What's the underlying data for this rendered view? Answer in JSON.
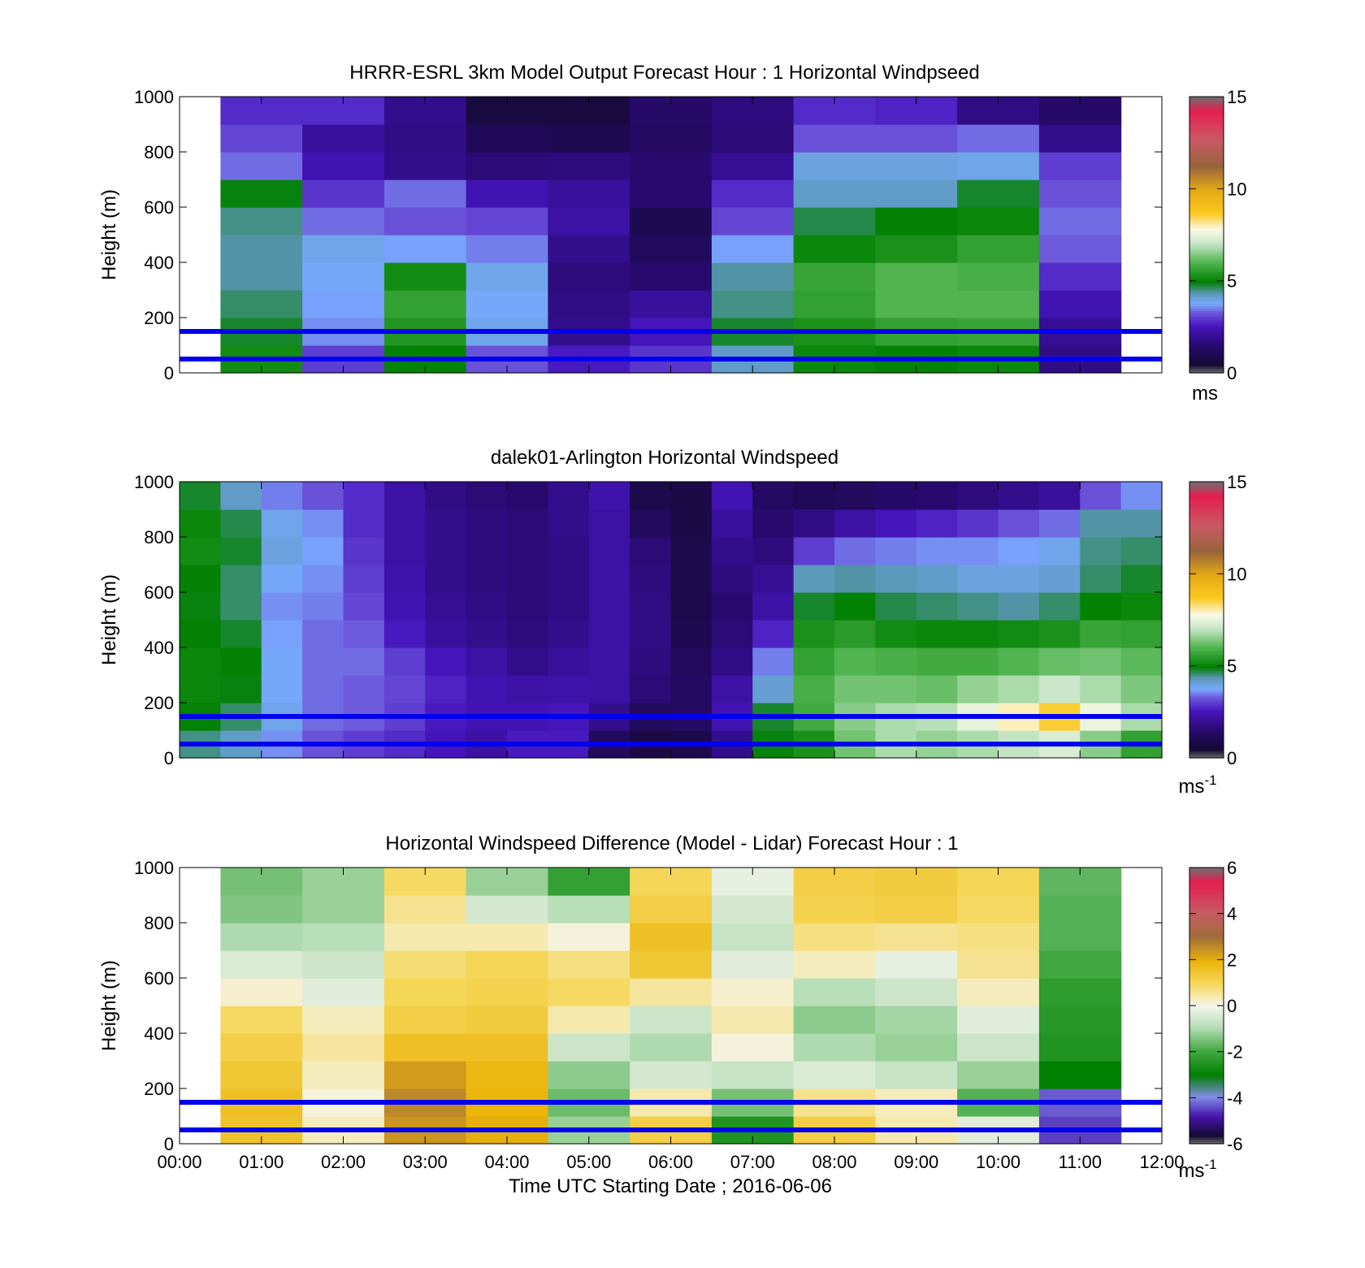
{
  "figure": {
    "xlabel": "Time UTC  Starting Date ; 2016-06-06",
    "x_ticks": [
      "00:00",
      "01:00",
      "02:00",
      "03:00",
      "04:00",
      "05:00",
      "06:00",
      "07:00",
      "08:00",
      "09:00",
      "10:00",
      "11:00",
      "12:00"
    ],
    "y_ticks": [
      "0",
      "200",
      "400",
      "600",
      "800",
      "1000"
    ],
    "ylabel": "Height (m)"
  },
  "chart_data": [
    {
      "type": "heatmap",
      "title": "HRRR-ESRL 3km Model Output   Forecast Hour : 1 Horizontal Windpseed",
      "xlabel": "",
      "ylabel": "Height (m)",
      "xlim": [
        0,
        12
      ],
      "ylim": [
        0,
        1000
      ],
      "grid": false,
      "colorbar": {
        "min": 0,
        "max": 15,
        "ticks": [
          "0",
          "5",
          "10",
          "15"
        ],
        "unit": "ms"
      },
      "x_hours": [
        1,
        2,
        3,
        4,
        5,
        6,
        7,
        8,
        9,
        10,
        11
      ],
      "y_levels_m": [
        50,
        150,
        250,
        350,
        450,
        550,
        650,
        750,
        850,
        950
      ],
      "values": [
        [
          5.2,
          4.8,
          4.6,
          4.4,
          4.4,
          4.5,
          4.9,
          3.4,
          3.1,
          2.8
        ],
        [
          3.0,
          3.6,
          3.7,
          3.8,
          3.9,
          3.4,
          2.9,
          2.4,
          2.1,
          2.8
        ],
        [
          5.0,
          5.4,
          5.6,
          5.2,
          3.7,
          3.2,
          3.4,
          1.9,
          1.8,
          1.9
        ],
        [
          3.2,
          3.9,
          3.8,
          3.9,
          3.5,
          3.1,
          2.4,
          1.6,
          1.1,
          0.7
        ],
        [
          2.6,
          1.9,
          1.8,
          1.7,
          1.9,
          2.2,
          2.1,
          1.7,
          1.0,
          0.7
        ],
        [
          2.9,
          2.5,
          2.1,
          1.5,
          1.2,
          1.0,
          1.5,
          1.5,
          1.3,
          1.4
        ],
        [
          4.2,
          4.8,
          4.5,
          4.4,
          3.7,
          3.1,
          2.8,
          2.0,
          1.6,
          1.7
        ],
        [
          5.1,
          5.3,
          5.6,
          5.7,
          5.1,
          4.7,
          4.2,
          4.0,
          3.2,
          2.8
        ],
        [
          5.0,
          5.6,
          6.0,
          6.0,
          5.3,
          5.0,
          4.2,
          4.0,
          3.2,
          2.7
        ],
        [
          5.1,
          5.7,
          6.0,
          5.9,
          5.6,
          5.1,
          4.8,
          3.9,
          3.4,
          1.8
        ],
        [
          1.8,
          2.0,
          2.4,
          2.8,
          3.3,
          3.4,
          3.2,
          3.0,
          1.9,
          1.4
        ]
      ],
      "reference_lines_m": [
        50,
        150
      ],
      "reference_line_color": "#0000ee"
    },
    {
      "type": "heatmap",
      "title": "dalek01-Arlington  Horizontal Windspeed",
      "xlabel": "",
      "ylabel": "Height (m)",
      "xlim": [
        0,
        12
      ],
      "ylim": [
        0,
        1000
      ],
      "grid": false,
      "colorbar": {
        "min": 0,
        "max": 15,
        "ticks": [
          "0",
          "5",
          "10",
          "15"
        ],
        "unit": "ms-1"
      },
      "x_hours": [
        0.25,
        0.75,
        1.25,
        1.75,
        2.25,
        2.75,
        3.25,
        3.75,
        4.25,
        4.75,
        5.25,
        5.75,
        6.25,
        6.75,
        7.25,
        7.75,
        8.25,
        8.75,
        9.25,
        9.75,
        10.25,
        10.75,
        11.25,
        11.75
      ],
      "y_levels_m": [
        50,
        150,
        250,
        350,
        450,
        550,
        650,
        750,
        850,
        950
      ],
      "values": [
        [
          4.5,
          5.0,
          5.1,
          5.1,
          5.0,
          4.9,
          5.0,
          5.2,
          5.1,
          4.8
        ],
        [
          4.2,
          4.6,
          4.9,
          5.0,
          4.8,
          4.6,
          4.6,
          4.8,
          4.7,
          4.2
        ],
        [
          3.6,
          3.9,
          3.8,
          3.8,
          3.7,
          3.6,
          3.8,
          4.0,
          3.9,
          3.5
        ],
        [
          3.2,
          3.4,
          3.4,
          3.4,
          3.4,
          3.5,
          3.6,
          3.7,
          3.6,
          3.2
        ],
        [
          3.0,
          3.3,
          3.3,
          3.4,
          3.3,
          3.1,
          3.0,
          2.9,
          2.8,
          2.8
        ],
        [
          2.8,
          3.0,
          3.1,
          3.0,
          2.6,
          2.4,
          2.3,
          2.2,
          2.2,
          2.2
        ],
        [
          2.5,
          2.6,
          2.7,
          2.5,
          2.1,
          2.0,
          1.9,
          1.9,
          1.9,
          1.8
        ],
        [
          2.2,
          2.4,
          2.4,
          2.2,
          1.9,
          1.8,
          1.7,
          1.7,
          1.7,
          1.6
        ],
        [
          2.6,
          2.4,
          2.2,
          1.9,
          1.7,
          1.6,
          1.6,
          1.6,
          1.6,
          1.5
        ],
        [
          2.6,
          2.5,
          2.3,
          2.1,
          1.9,
          1.8,
          1.8,
          1.8,
          1.9,
          1.9
        ],
        [
          1.2,
          1.9,
          2.2,
          2.2,
          2.2,
          2.2,
          2.2,
          2.2,
          2.2,
          2.3
        ],
        [
          0.8,
          1.2,
          1.6,
          1.7,
          1.8,
          1.8,
          1.7,
          1.6,
          1.2,
          0.9
        ],
        [
          0.9,
          1.3,
          1.3,
          1.2,
          1.0,
          0.9,
          0.9,
          0.9,
          0.8,
          0.8
        ],
        [
          1.9,
          2.4,
          2.2,
          1.8,
          1.6,
          1.5,
          1.7,
          1.9,
          2.1,
          2.4
        ],
        [
          4.9,
          4.8,
          4.1,
          3.5,
          2.7,
          2.2,
          2.0,
          1.7,
          1.5,
          1.3
        ],
        [
          5.3,
          5.8,
          5.9,
          5.6,
          5.3,
          4.8,
          4.3,
          3.0,
          1.8,
          1.1
        ],
        [
          6.3,
          6.5,
          6.3,
          6.0,
          5.5,
          5.0,
          4.4,
          3.4,
          2.2,
          1.2
        ],
        [
          6.8,
          6.8,
          6.3,
          5.9,
          5.2,
          4.7,
          4.3,
          3.5,
          2.5,
          1.4
        ],
        [
          6.6,
          6.9,
          6.2,
          5.8,
          5.1,
          4.6,
          4.2,
          3.6,
          2.7,
          1.5
        ],
        [
          6.8,
          7.5,
          6.6,
          5.8,
          5.1,
          4.5,
          4.0,
          3.6,
          2.9,
          1.7
        ],
        [
          7.0,
          8.0,
          6.8,
          6.0,
          5.2,
          4.4,
          4.0,
          3.7,
          3.2,
          1.9
        ],
        [
          7.3,
          8.6,
          7.1,
          6.2,
          5.3,
          4.6,
          4.1,
          3.9,
          3.4,
          2.1
        ],
        [
          6.5,
          7.6,
          6.8,
          6.3,
          5.7,
          5.0,
          4.6,
          4.5,
          4.4,
          3.2
        ],
        [
          5.6,
          6.8,
          6.4,
          6.1,
          5.6,
          5.1,
          4.8,
          4.6,
          4.4,
          3.6
        ]
      ],
      "reference_lines_m": [
        50,
        150
      ],
      "reference_line_color": "#0000ee"
    },
    {
      "type": "heatmap",
      "title": "Horizontal Windspeed Difference (Model - Lidar) Forecast Hour : 1",
      "xlabel": "Time UTC  Starting Date ; 2016-06-06",
      "ylabel": "Height (m)",
      "xlim": [
        0,
        12
      ],
      "ylim": [
        0,
        1000
      ],
      "grid": false,
      "colorbar": {
        "min": -6,
        "max": 6,
        "ticks": [
          "-6",
          "-4",
          "-2",
          "0",
          "2",
          "4",
          "6"
        ],
        "unit": "ms-1"
      },
      "x_hours": [
        1,
        2,
        3,
        4,
        5,
        6,
        7,
        8,
        9,
        10,
        11
      ],
      "y_levels_m": [
        50,
        150,
        250,
        350,
        450,
        550,
        650,
        750,
        850,
        950
      ],
      "values": [
        [
          1.5,
          1.6,
          1.4,
          1.2,
          0.9,
          0.2,
          -0.4,
          -1.0,
          -1.4,
          -1.5
        ],
        [
          0.3,
          0.1,
          0.3,
          0.5,
          0.3,
          -0.3,
          -0.6,
          -0.9,
          -1.2,
          -1.2
        ],
        [
          2.4,
          2.6,
          2.3,
          1.6,
          1.2,
          1.0,
          0.8,
          0.4,
          0.6,
          0.9
        ],
        [
          2.0,
          1.9,
          1.8,
          1.6,
          1.3,
          1.1,
          1.0,
          0.4,
          -0.5,
          -1.2
        ],
        [
          -1.2,
          -1.6,
          -1.3,
          -0.6,
          0.4,
          0.9,
          0.7,
          0.1,
          -0.9,
          -2.2
        ],
        [
          1.2,
          0.4,
          -0.5,
          -1.0,
          -0.6,
          0.5,
          1.4,
          1.6,
          1.2,
          1.0
        ],
        [
          -2.5,
          -1.5,
          -0.7,
          0.1,
          0.4,
          0.2,
          -0.3,
          -0.7,
          -0.5,
          -0.2
        ],
        [
          1.2,
          0.6,
          -0.4,
          -1.0,
          -1.3,
          -0.9,
          0.3,
          0.7,
          1.1,
          1.2
        ],
        [
          0.4,
          0.3,
          -0.7,
          -1.2,
          -1.1,
          -0.6,
          -0.2,
          0.6,
          1.2,
          1.3
        ],
        [
          -0.3,
          -1.8,
          -1.2,
          -0.6,
          -0.3,
          0.3,
          0.6,
          0.7,
          0.9,
          1.0
        ],
        [
          -4.5,
          -4.3,
          -3.0,
          -2.5,
          -2.4,
          -2.3,
          -2.0,
          -1.8,
          -1.8,
          -1.7
        ]
      ],
      "reference_lines_m": [
        50,
        150
      ],
      "reference_line_color": "#0000ee"
    }
  ]
}
